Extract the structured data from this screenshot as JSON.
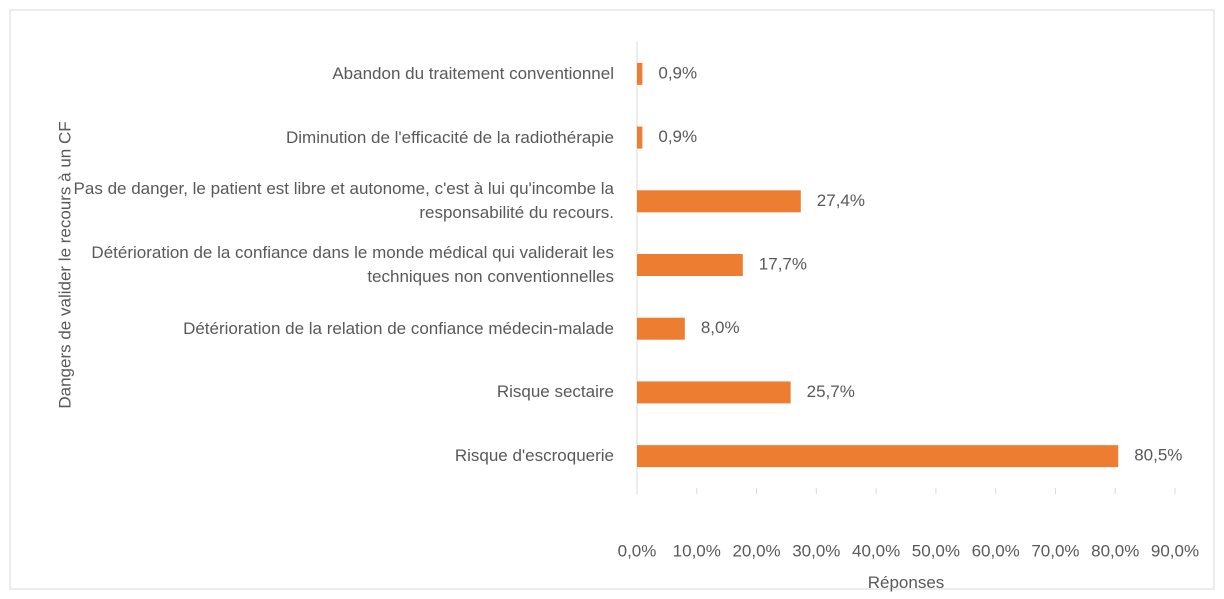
{
  "chart_data": {
    "type": "bar",
    "orientation": "horizontal",
    "y_label": "Dangers de valider le recours à un CF",
    "x_label": "Réponses",
    "categories": [
      "Abandon du traitement conventionnel",
      "Diminution de l'efficacité de la radiothérapie",
      "Pas de danger, le patient est libre et autonome, c'est à lui qu'incombe la responsabilité du recours.",
      "Détérioration de la confiance dans le monde médical qui validerait les techniques non conventionnelles",
      "Détérioration de la relation de confiance médecin-malade",
      "Risque sectaire",
      "Risque d'escroquerie"
    ],
    "values": [
      0.9,
      0.9,
      27.4,
      17.7,
      8.0,
      25.7,
      80.5
    ],
    "value_labels": [
      "0,9%",
      "0,9%",
      "27,4%",
      "17,7%",
      "8,0%",
      "25,7%",
      "80,5%"
    ],
    "color": "#ed7d31",
    "xlim": [
      0,
      90
    ],
    "xticks": [
      {
        "value": 0,
        "label": "0,0%"
      },
      {
        "value": 10,
        "label": "10,0%"
      },
      {
        "value": 20,
        "label": "20,0%"
      },
      {
        "value": 30,
        "label": "30,0%"
      },
      {
        "value": 40,
        "label": "40,0%"
      },
      {
        "value": 50,
        "label": "50,0%"
      },
      {
        "value": 60,
        "label": "60,0%"
      },
      {
        "value": 70,
        "label": "70,0%"
      },
      {
        "value": 80,
        "label": "80,0%"
      },
      {
        "value": 90,
        "label": "90,0%"
      }
    ]
  }
}
